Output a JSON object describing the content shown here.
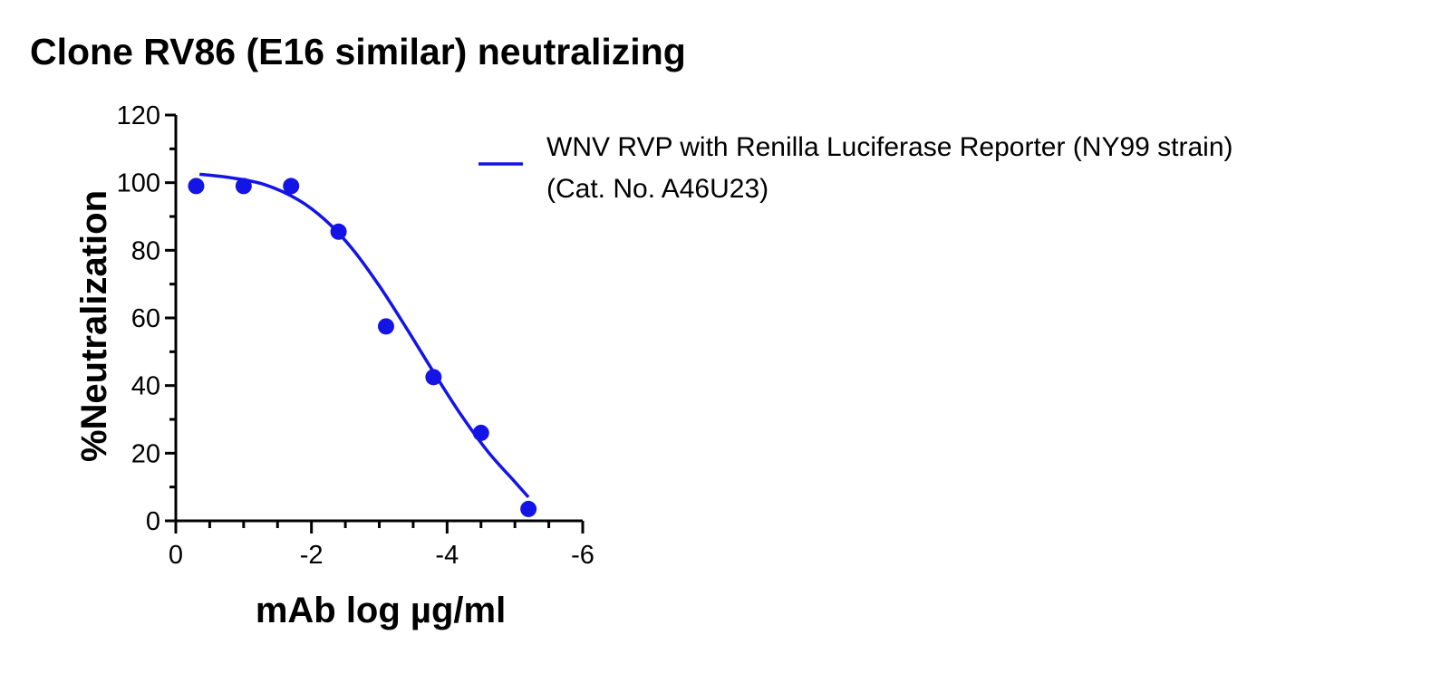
{
  "chart_data": {
    "type": "scatter",
    "title": "Clone RV86 (E16 similar) neutralizing",
    "xlabel": "mAb log µg/ml",
    "ylabel": "%Neutralization",
    "xlim": [
      0,
      -6
    ],
    "ylim": [
      0,
      120
    ],
    "x_ticks": [
      {
        "value": 0,
        "label": "0"
      },
      {
        "value": -2,
        "label": "-2"
      },
      {
        "value": -4,
        "label": "-4"
      },
      {
        "value": -6,
        "label": "-6"
      }
    ],
    "y_ticks": [
      {
        "value": 0,
        "label": "0"
      },
      {
        "value": 20,
        "label": "20"
      },
      {
        "value": 40,
        "label": "40"
      },
      {
        "value": 60,
        "label": "60"
      },
      {
        "value": 80,
        "label": "80"
      },
      {
        "value": 100,
        "label": "100"
      },
      {
        "value": 120,
        "label": "120"
      }
    ],
    "series": [
      {
        "name": "WNV RVP with Renilla Luciferase Reporter (NY99 strain) (Cat. No. A46U23)",
        "legend_lines": [
          "WNV RVP with Renilla Luciferase Reporter (NY99 strain)",
          "(Cat. No. A46U23)"
        ],
        "color": "#1414e6",
        "points": [
          {
            "x": -0.3,
            "y": 99
          },
          {
            "x": -1.0,
            "y": 99
          },
          {
            "x": -1.7,
            "y": 99
          },
          {
            "x": -2.4,
            "y": 85.5
          },
          {
            "x": -3.1,
            "y": 57.5
          },
          {
            "x": -3.8,
            "y": 42.5
          },
          {
            "x": -4.5,
            "y": 26
          },
          {
            "x": -5.2,
            "y": 3.5
          }
        ],
        "fit_curve": [
          {
            "x": -0.35,
            "y": 102.5
          },
          {
            "x": -0.8,
            "y": 101.5
          },
          {
            "x": -1.3,
            "y": 99.5
          },
          {
            "x": -1.8,
            "y": 95
          },
          {
            "x": -2.2,
            "y": 89
          },
          {
            "x": -2.6,
            "y": 80.5
          },
          {
            "x": -3.0,
            "y": 69.5
          },
          {
            "x": -3.4,
            "y": 57
          },
          {
            "x": -3.8,
            "y": 44
          },
          {
            "x": -4.2,
            "y": 31.5
          },
          {
            "x": -4.6,
            "y": 20.5
          },
          {
            "x": -5.0,
            "y": 11.5
          },
          {
            "x": -5.2,
            "y": 7
          }
        ]
      }
    ],
    "legend_position": "top-right",
    "grid": false
  }
}
